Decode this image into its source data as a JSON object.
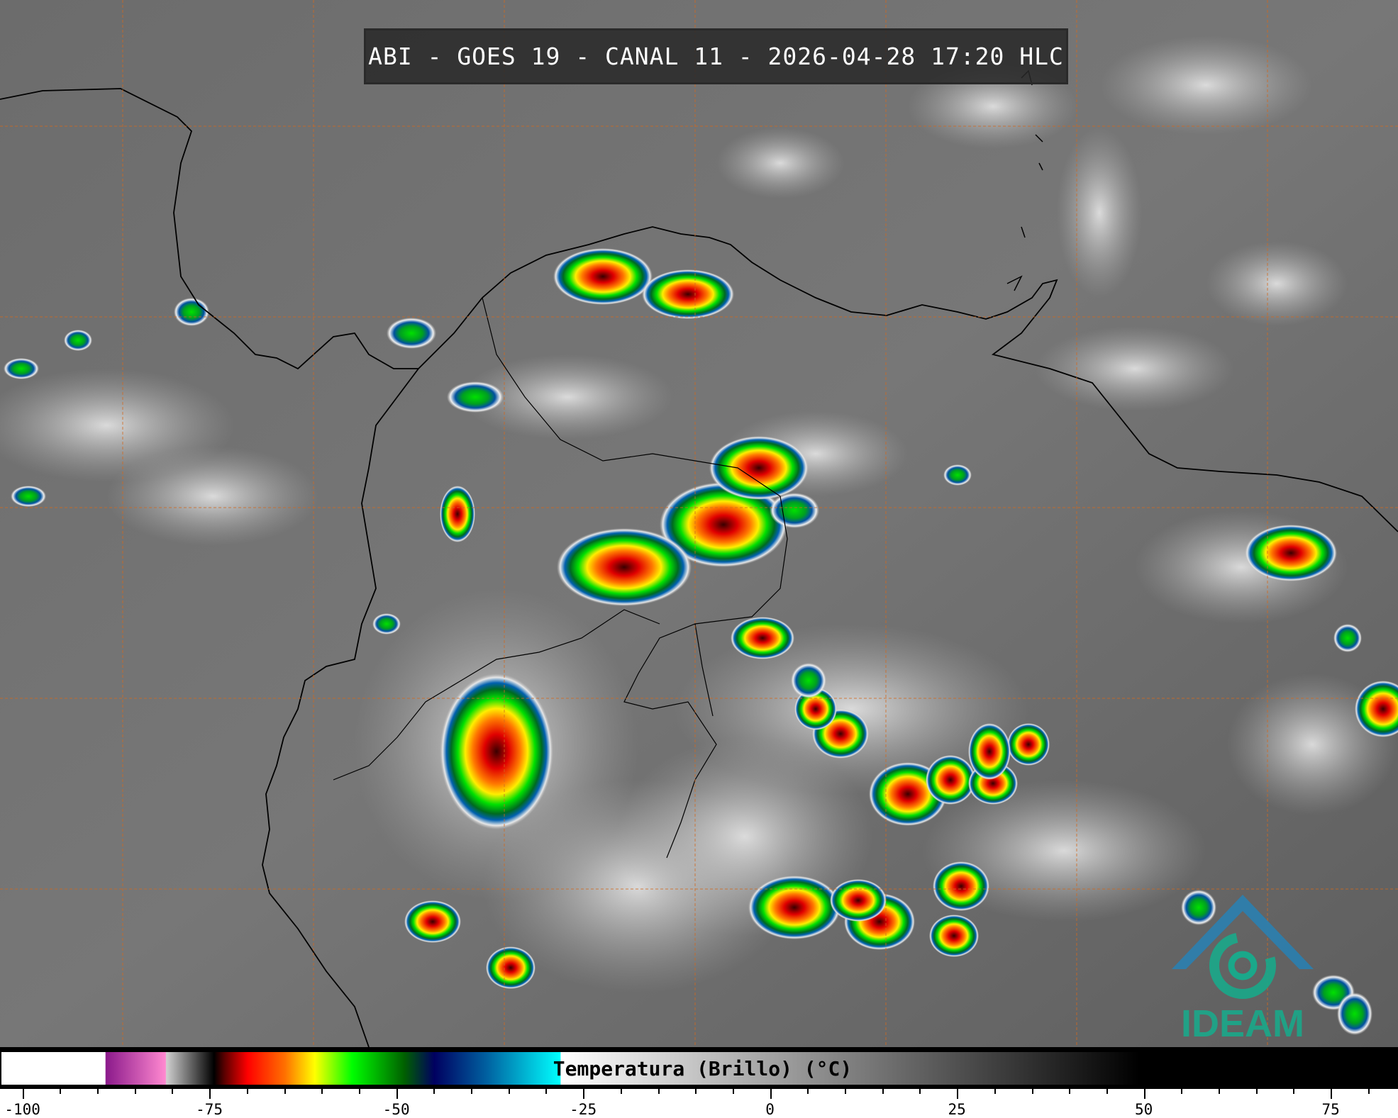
{
  "title": "ABI - GOES 19 - CANAL 11 - 2026-04-28 17:20 HLC",
  "colorbar": {
    "label": "Temperatura (Brillo) (°C)",
    "range": [
      -103,
      84
    ],
    "major_ticks": [
      "-100",
      "-75",
      "-50",
      "-25",
      "0",
      "25",
      "50",
      "75"
    ],
    "minor_step": 5,
    "color_stops": [
      {
        "t": -103,
        "color": "#ffffff"
      },
      {
        "t": -89.1,
        "color": "#ffffff"
      },
      {
        "t": -89,
        "color": "#8b1a8b"
      },
      {
        "t": -81,
        "color": "#ff88d0"
      },
      {
        "t": -80.9,
        "color": "#d0d0d0"
      },
      {
        "t": -76,
        "color": "#303030"
      },
      {
        "t": -74.5,
        "color": "#000000"
      },
      {
        "t": -73,
        "color": "#600000"
      },
      {
        "t": -70,
        "color": "#ff0000"
      },
      {
        "t": -65,
        "color": "#ff7000"
      },
      {
        "t": -61,
        "color": "#ffff00"
      },
      {
        "t": -56,
        "color": "#00ff00"
      },
      {
        "t": -49,
        "color": "#006000"
      },
      {
        "t": -45,
        "color": "#000060"
      },
      {
        "t": -38,
        "color": "#0060a0"
      },
      {
        "t": -28.1,
        "color": "#00ffff"
      },
      {
        "t": -28,
        "color": "#ffffff"
      },
      {
        "t": 49.5,
        "color": "#000000"
      },
      {
        "t": 84,
        "color": "#000000"
      }
    ]
  },
  "logo": {
    "text": "IDEAM",
    "color": "#1aa88a"
  },
  "grid_color": "#d2691e"
}
